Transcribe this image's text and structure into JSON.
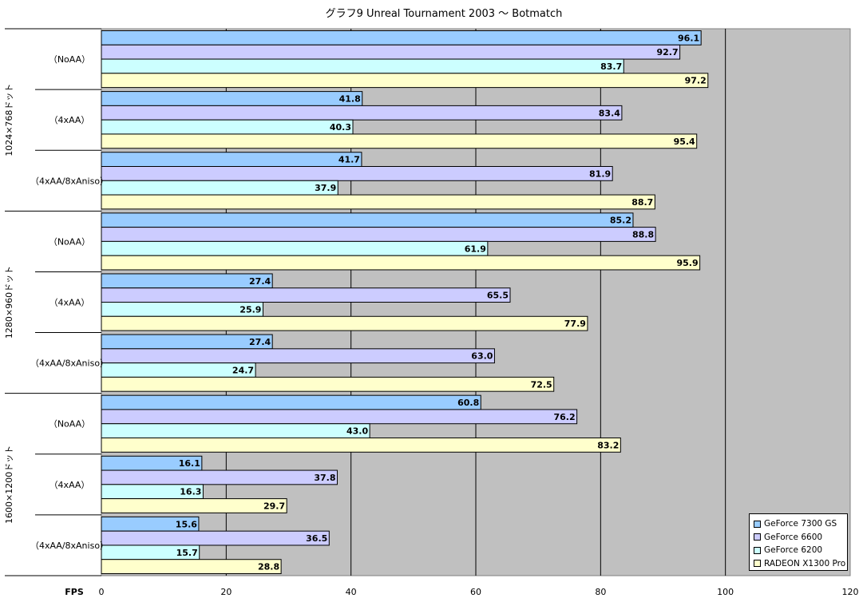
{
  "chart_data": {
    "type": "bar",
    "orientation": "horizontal",
    "title": "グラフ9  Unreal Tournament 2003 〜 Botmatch",
    "xlabel": "FPS",
    "xlim": [
      0,
      120
    ],
    "xticks": [
      0,
      20,
      40,
      60,
      80,
      100,
      120
    ],
    "grid": true,
    "legend_position": "bottom-right",
    "groups": [
      {
        "label": "1024×768ドット",
        "categories": [
          "（NoAA）",
          "（4xAA）",
          "（4xAA/8xAniso）"
        ]
      },
      {
        "label": "1280×960ドット",
        "categories": [
          "（NoAA）",
          "（4xAA）",
          "（4xAA/8xAniso）"
        ]
      },
      {
        "label": "1600×1200ドット",
        "categories": [
          "（NoAA）",
          "（4xAA）",
          "（4xAA/8xAniso）"
        ]
      }
    ],
    "series": [
      {
        "name": "GeForce 7300 GS",
        "color": "#99ccff",
        "values": [
          96.1,
          41.8,
          41.7,
          85.2,
          27.4,
          27.4,
          60.8,
          16.1,
          15.6
        ]
      },
      {
        "name": "GeForce 6600",
        "color": "#ccccff",
        "values": [
          92.7,
          83.4,
          81.9,
          88.8,
          65.5,
          63.0,
          76.2,
          37.8,
          36.5
        ]
      },
      {
        "name": "GeForce 6200",
        "color": "#ccffff",
        "values": [
          83.7,
          40.3,
          37.9,
          61.9,
          25.9,
          24.7,
          43.0,
          16.3,
          15.7
        ]
      },
      {
        "name": "RADEON X1300 Pro",
        "color": "#ffffcc",
        "values": [
          97.2,
          95.4,
          88.7,
          95.9,
          77.9,
          72.5,
          83.2,
          29.7,
          28.8
        ]
      }
    ]
  }
}
